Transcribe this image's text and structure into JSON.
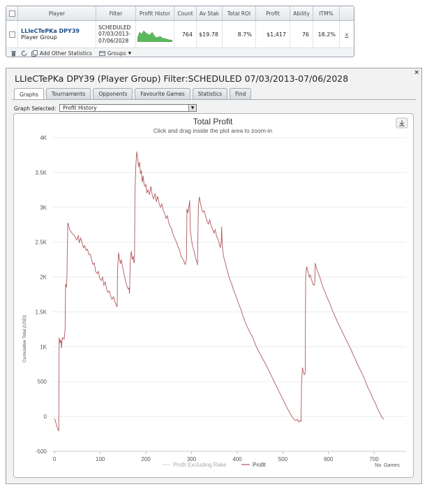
{
  "stats_table": {
    "headers": [
      "Player",
      "Filter",
      "Profit Histor",
      "Count",
      "Av Stak",
      "Total ROI",
      "Profit",
      "Ability",
      "ITM%"
    ],
    "row": {
      "player_name": "LLIeCTePKa DPY39",
      "player_type": "Player Group",
      "filter_line1": "SCHEDULED",
      "filter_line2": "07/03/2013-",
      "filter_line3": "07/06/2028",
      "count": "764",
      "av_stake": "$19.78",
      "total_roi": "8.7%",
      "profit": "$1,417",
      "ability": "76",
      "itm": "18.2%",
      "remove_label": "x"
    },
    "toolbar": {
      "add_stats_label": "Add Other Statistics",
      "groups_label": "Groups"
    },
    "sparkline_color": "#5cb85c"
  },
  "detail": {
    "title": "LLIeCTePKa DPY39 (Player Group) Filter:SCHEDULED 07/03/2013-07/06/2028",
    "close_label": "×",
    "tabs": [
      "Graphs",
      "Tournaments",
      "Opponents",
      "Favourite Games",
      "Statistics",
      "Find"
    ],
    "active_tab": "Graphs",
    "graph_selected_label": "Graph Selected:",
    "graph_selected_value": "Profit History"
  },
  "chart_data": {
    "type": "line",
    "title": "Total Profit",
    "subtitle": "Click and drag inside the plot area to zoom-in",
    "ylabel": "Cumulative Total (USD)",
    "xlabel": "No. Games",
    "ylim": [
      -500,
      4000
    ],
    "xlim": [
      -5,
      770
    ],
    "y_ticks": [
      -500,
      0,
      500,
      1000,
      1500,
      2000,
      2500,
      3000,
      3500,
      4000
    ],
    "y_tick_labels": [
      "-500",
      "0",
      "500",
      "1K",
      "1.5K",
      "2K",
      "2.5K",
      "3K",
      "3.5K",
      "4K"
    ],
    "x_ticks": [
      0,
      100,
      200,
      300,
      400,
      500,
      600,
      700
    ],
    "x_tick_labels": [
      "0",
      "100",
      "200",
      "300",
      "400",
      "500",
      "600",
      "700"
    ],
    "grid": "horizontal",
    "legend": [
      "Profit Excluding Rake",
      "Profit"
    ],
    "legend_placement": "bottom-center",
    "series": [
      {
        "name": "Profit",
        "color": "#b0575c",
        "points": [
          [
            0,
            -30
          ],
          [
            4,
            -120
          ],
          [
            7,
            -180
          ],
          [
            9,
            -210
          ],
          [
            10,
            1130
          ],
          [
            12,
            1060
          ],
          [
            14,
            1100
          ],
          [
            15,
            980
          ],
          [
            17,
            1130
          ],
          [
            19,
            1120
          ],
          [
            21,
            1110
          ],
          [
            23,
            1250
          ],
          [
            24,
            1900
          ],
          [
            26,
            1850
          ],
          [
            27,
            2000
          ],
          [
            29,
            2780
          ],
          [
            31,
            2730
          ],
          [
            33,
            2680
          ],
          [
            36,
            2650
          ],
          [
            39,
            2620
          ],
          [
            43,
            2600
          ],
          [
            46,
            2560
          ],
          [
            49,
            2530
          ],
          [
            52,
            2600
          ],
          [
            54,
            2490
          ],
          [
            57,
            2560
          ],
          [
            60,
            2500
          ],
          [
            63,
            2420
          ],
          [
            66,
            2450
          ],
          [
            69,
            2380
          ],
          [
            72,
            2400
          ],
          [
            75,
            2320
          ],
          [
            78,
            2330
          ],
          [
            81,
            2250
          ],
          [
            84,
            2180
          ],
          [
            87,
            2200
          ],
          [
            90,
            2080
          ],
          [
            93,
            2050
          ],
          [
            96,
            2080
          ],
          [
            99,
            1980
          ],
          [
            102,
            1950
          ],
          [
            105,
            2000
          ],
          [
            108,
            1880
          ],
          [
            111,
            1930
          ],
          [
            114,
            1820
          ],
          [
            117,
            1780
          ],
          [
            120,
            1800
          ],
          [
            123,
            1720
          ],
          [
            126,
            1680
          ],
          [
            129,
            1720
          ],
          [
            132,
            1650
          ],
          [
            135,
            1600
          ],
          [
            137,
            1570
          ],
          [
            138,
            2100
          ],
          [
            140,
            2350
          ],
          [
            142,
            2260
          ],
          [
            144,
            2190
          ],
          [
            146,
            2250
          ],
          [
            149,
            2150
          ],
          [
            152,
            2050
          ],
          [
            155,
            1950
          ],
          [
            158,
            1880
          ],
          [
            161,
            1830
          ],
          [
            163,
            1840
          ],
          [
            164,
            1760
          ],
          [
            166,
            2270
          ],
          [
            168,
            2370
          ],
          [
            170,
            2250
          ],
          [
            172,
            2300
          ],
          [
            174,
            2200
          ],
          [
            175,
            2230
          ],
          [
            176,
            3200
          ],
          [
            178,
            3600
          ],
          [
            180,
            3800
          ],
          [
            182,
            3700
          ],
          [
            184,
            3580
          ],
          [
            186,
            3650
          ],
          [
            188,
            3480
          ],
          [
            190,
            3530
          ],
          [
            192,
            3360
          ],
          [
            194,
            3450
          ],
          [
            196,
            3330
          ],
          [
            198,
            3300
          ],
          [
            200,
            3330
          ],
          [
            202,
            3210
          ],
          [
            205,
            3250
          ],
          [
            208,
            3180
          ],
          [
            211,
            3300
          ],
          [
            214,
            3170
          ],
          [
            217,
            3120
          ],
          [
            220,
            3200
          ],
          [
            223,
            3080
          ],
          [
            226,
            3160
          ],
          [
            229,
            3050
          ],
          [
            232,
            3000
          ],
          [
            235,
            3050
          ],
          [
            238,
            2950
          ],
          [
            241,
            2920
          ],
          [
            244,
            2840
          ],
          [
            247,
            2880
          ],
          [
            250,
            2780
          ],
          [
            253,
            2730
          ],
          [
            256,
            2700
          ],
          [
            259,
            2620
          ],
          [
            262,
            2570
          ],
          [
            265,
            2530
          ],
          [
            268,
            2480
          ],
          [
            271,
            2420
          ],
          [
            274,
            2380
          ],
          [
            277,
            2300
          ],
          [
            280,
            2270
          ],
          [
            283,
            2230
          ],
          [
            286,
            2180
          ],
          [
            289,
            2250
          ],
          [
            290,
            2980
          ],
          [
            292,
            2920
          ],
          [
            295,
            3050
          ],
          [
            296,
            3100
          ],
          [
            297,
            2700
          ],
          [
            299,
            2580
          ],
          [
            302,
            2450
          ],
          [
            305,
            2380
          ],
          [
            307,
            2330
          ],
          [
            310,
            2240
          ],
          [
            312,
            2210
          ],
          [
            313,
            2170
          ],
          [
            315,
            3000
          ],
          [
            317,
            3150
          ],
          [
            319,
            3080
          ],
          [
            322,
            2980
          ],
          [
            325,
            2930
          ],
          [
            328,
            2950
          ],
          [
            331,
            2870
          ],
          [
            334,
            2800
          ],
          [
            337,
            2760
          ],
          [
            340,
            2820
          ],
          [
            343,
            2730
          ],
          [
            346,
            2690
          ],
          [
            349,
            2630
          ],
          [
            352,
            2680
          ],
          [
            355,
            2580
          ],
          [
            358,
            2550
          ],
          [
            361,
            2470
          ],
          [
            363,
            2420
          ],
          [
            365,
            2500
          ],
          [
            366,
            2720
          ],
          [
            367,
            2480
          ],
          [
            370,
            2300
          ],
          [
            373,
            2230
          ],
          [
            376,
            2150
          ],
          [
            379,
            2080
          ],
          [
            382,
            2000
          ],
          [
            385,
            1950
          ],
          [
            388,
            1900
          ],
          [
            391,
            1830
          ],
          [
            394,
            1780
          ],
          [
            397,
            1730
          ],
          [
            400,
            1680
          ],
          [
            403,
            1620
          ],
          [
            406,
            1570
          ],
          [
            409,
            1520
          ],
          [
            412,
            1450
          ],
          [
            415,
            1400
          ],
          [
            418,
            1350
          ],
          [
            421,
            1300
          ],
          [
            424,
            1260
          ],
          [
            427,
            1220
          ],
          [
            430,
            1180
          ],
          [
            433,
            1150
          ],
          [
            436,
            1100
          ],
          [
            439,
            1050
          ],
          [
            442,
            1000
          ],
          [
            445,
            960
          ],
          [
            448,
            920
          ],
          [
            451,
            890
          ],
          [
            454,
            850
          ],
          [
            457,
            810
          ],
          [
            460,
            780
          ],
          [
            463,
            740
          ],
          [
            466,
            700
          ],
          [
            469,
            660
          ],
          [
            472,
            620
          ],
          [
            475,
            580
          ],
          [
            478,
            540
          ],
          [
            481,
            500
          ],
          [
            484,
            460
          ],
          [
            487,
            420
          ],
          [
            490,
            380
          ],
          [
            493,
            340
          ],
          [
            496,
            300
          ],
          [
            499,
            260
          ],
          [
            502,
            220
          ],
          [
            505,
            180
          ],
          [
            508,
            140
          ],
          [
            511,
            100
          ],
          [
            514,
            70
          ],
          [
            517,
            30
          ],
          [
            520,
            0
          ],
          [
            523,
            -30
          ],
          [
            526,
            -50
          ],
          [
            529,
            -60
          ],
          [
            532,
            -40
          ],
          [
            535,
            -80
          ],
          [
            538,
            -60
          ],
          [
            540,
            -70
          ],
          [
            541,
            470
          ],
          [
            543,
            700
          ],
          [
            545,
            640
          ],
          [
            547,
            600
          ],
          [
            549,
            620
          ],
          [
            550,
            2000
          ],
          [
            552,
            2150
          ],
          [
            554,
            2100
          ],
          [
            556,
            2050
          ],
          [
            558,
            2000
          ],
          [
            560,
            2030
          ],
          [
            562,
            1980
          ],
          [
            564,
            1940
          ],
          [
            566,
            1900
          ],
          [
            568,
            1880
          ],
          [
            570,
            1920
          ],
          [
            571,
            2200
          ],
          [
            573,
            2150
          ],
          [
            575,
            2100
          ],
          [
            578,
            2050
          ],
          [
            581,
            2000
          ],
          [
            584,
            1930
          ],
          [
            587,
            1870
          ],
          [
            590,
            1820
          ],
          [
            593,
            1780
          ],
          [
            596,
            1720
          ],
          [
            599,
            1680
          ],
          [
            602,
            1640
          ],
          [
            605,
            1580
          ],
          [
            608,
            1530
          ],
          [
            611,
            1490
          ],
          [
            614,
            1440
          ],
          [
            617,
            1400
          ],
          [
            620,
            1350
          ],
          [
            623,
            1310
          ],
          [
            626,
            1270
          ],
          [
            629,
            1230
          ],
          [
            632,
            1190
          ],
          [
            635,
            1150
          ],
          [
            638,
            1110
          ],
          [
            641,
            1070
          ],
          [
            644,
            1030
          ],
          [
            647,
            990
          ],
          [
            650,
            950
          ],
          [
            653,
            900
          ],
          [
            656,
            860
          ],
          [
            659,
            820
          ],
          [
            662,
            770
          ],
          [
            665,
            730
          ],
          [
            668,
            690
          ],
          [
            671,
            650
          ],
          [
            674,
            610
          ],
          [
            677,
            570
          ],
          [
            680,
            520
          ],
          [
            683,
            470
          ],
          [
            686,
            420
          ],
          [
            689,
            380
          ],
          [
            692,
            340
          ],
          [
            695,
            290
          ],
          [
            698,
            250
          ],
          [
            701,
            210
          ],
          [
            704,
            170
          ],
          [
            707,
            120
          ],
          [
            710,
            80
          ],
          [
            713,
            40
          ],
          [
            716,
            0
          ],
          [
            719,
            -30
          ],
          [
            722,
            -40
          ]
        ]
      }
    ]
  }
}
